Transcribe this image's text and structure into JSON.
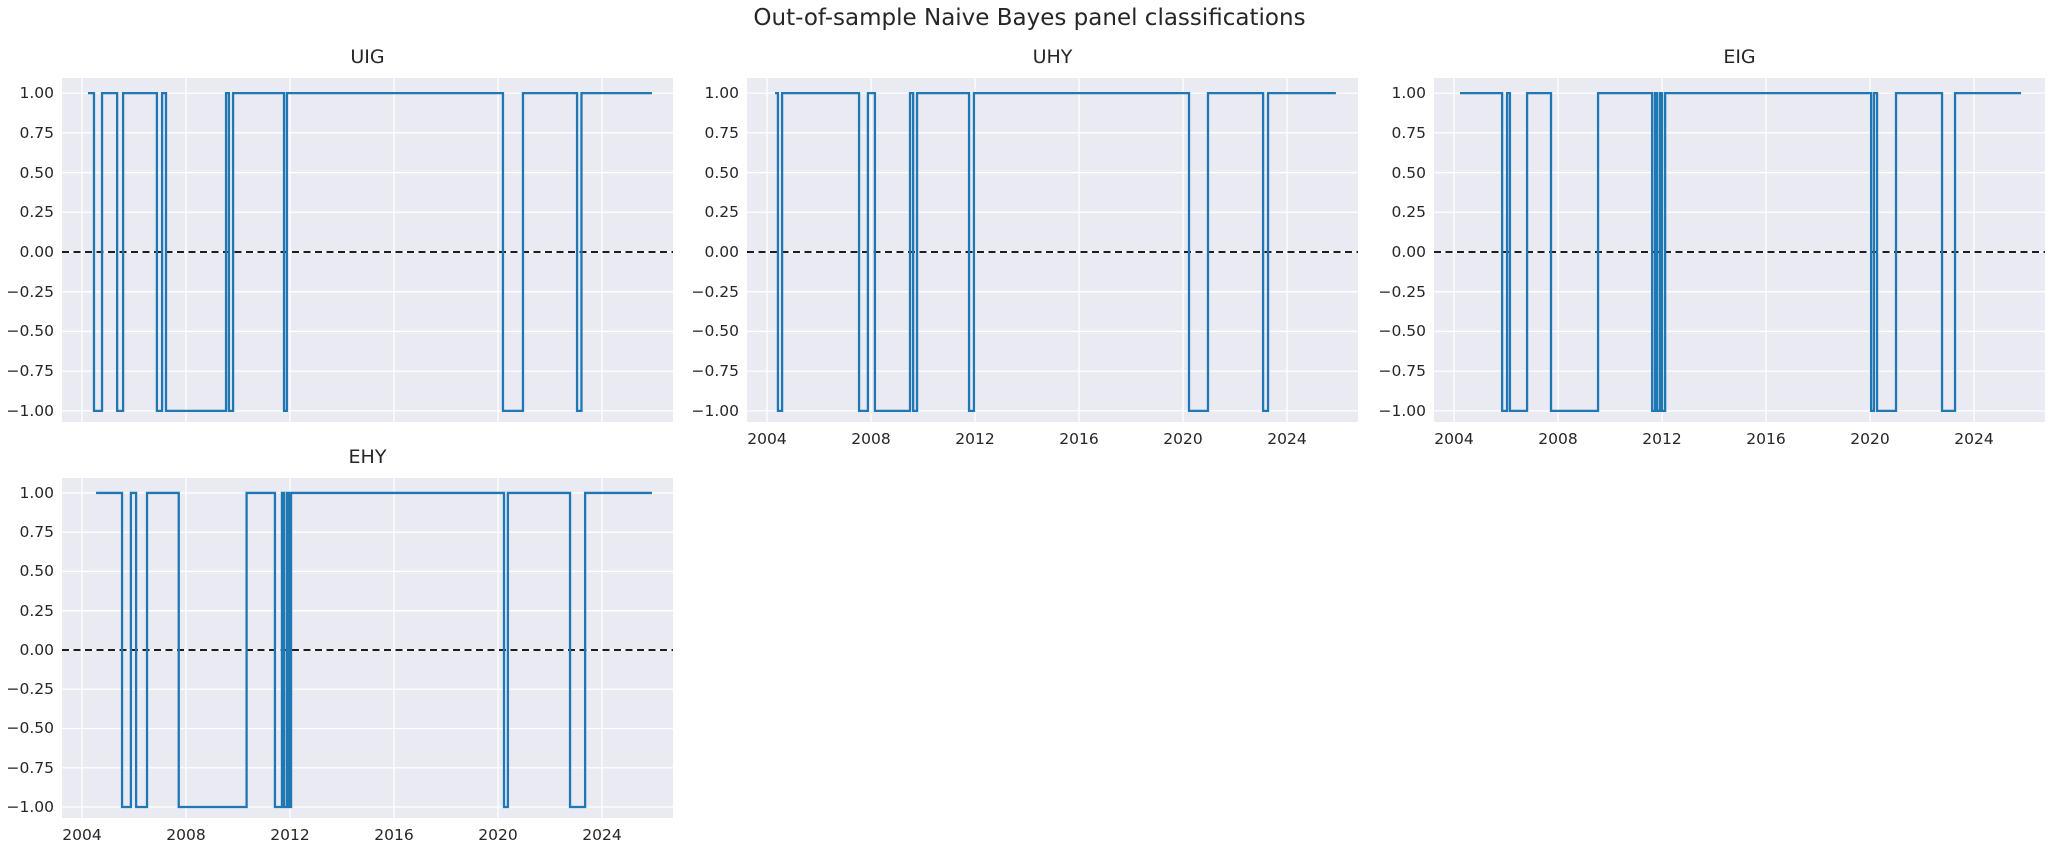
{
  "figure": {
    "suptitle": "Out-of-sample Naive Bayes panel classifications",
    "background_color": "#ffffff",
    "axes_background_color": "#eaeaf2",
    "grid_color": "#ffffff",
    "line_color": "#1f77b4",
    "zero_line_color": "#000000",
    "text_color": "#262626"
  },
  "chart_data": [
    {
      "type": "line",
      "title": "UIG",
      "xlabel": "",
      "ylabel": "",
      "x_domain": [
        2003.23,
        2026.73
      ],
      "y_domain": [
        -1.07,
        1.095
      ],
      "xticks": [
        2004,
        2008,
        2012,
        2016,
        2020,
        2024
      ],
      "yticks": [
        1.0,
        0.75,
        0.5,
        0.25,
        0.0,
        -0.25,
        -0.5,
        -0.75,
        -1.0
      ],
      "show_xtick_labels": false,
      "grid": true,
      "zero_line_dashed": true,
      "end_year": 2025.92,
      "steps": [
        [
          2004.23,
          1
        ],
        [
          2004.46,
          -1
        ],
        [
          2004.77,
          1
        ],
        [
          2005.35,
          -1
        ],
        [
          2005.58,
          1
        ],
        [
          2006.88,
          -1
        ],
        [
          2007.08,
          1
        ],
        [
          2007.23,
          -1
        ],
        [
          2009.54,
          1
        ],
        [
          2009.65,
          -1
        ],
        [
          2009.81,
          1
        ],
        [
          2011.77,
          -1
        ],
        [
          2011.88,
          1
        ],
        [
          2020.19,
          -1
        ],
        [
          2020.96,
          1
        ],
        [
          2023.04,
          -1
        ],
        [
          2023.21,
          1
        ]
      ]
    },
    {
      "type": "line",
      "title": "UHY",
      "xlabel": "",
      "ylabel": "",
      "x_domain": [
        2003.23,
        2026.73
      ],
      "y_domain": [
        -1.07,
        1.095
      ],
      "xticks": [
        2004,
        2008,
        2012,
        2016,
        2020,
        2024
      ],
      "yticks": [
        1.0,
        0.75,
        0.5,
        0.25,
        0.0,
        -0.25,
        -0.5,
        -0.75,
        -1.0
      ],
      "show_xtick_labels": true,
      "grid": true,
      "zero_line_dashed": true,
      "end_year": 2025.88,
      "steps": [
        [
          2004.31,
          1
        ],
        [
          2004.42,
          -1
        ],
        [
          2004.58,
          1
        ],
        [
          2007.54,
          -1
        ],
        [
          2007.88,
          1
        ],
        [
          2008.15,
          -1
        ],
        [
          2009.5,
          1
        ],
        [
          2009.62,
          -1
        ],
        [
          2009.77,
          1
        ],
        [
          2011.77,
          -1
        ],
        [
          2011.96,
          1
        ],
        [
          2020.23,
          -1
        ],
        [
          2020.96,
          1
        ],
        [
          2023.08,
          -1
        ],
        [
          2023.27,
          1
        ]
      ]
    },
    {
      "type": "line",
      "title": "EIG",
      "xlabel": "",
      "ylabel": "",
      "x_domain": [
        2003.23,
        2026.73
      ],
      "y_domain": [
        -1.07,
        1.095
      ],
      "xticks": [
        2004,
        2008,
        2012,
        2016,
        2020,
        2024
      ],
      "yticks": [
        1.0,
        0.75,
        0.5,
        0.25,
        0.0,
        -0.25,
        -0.5,
        -0.75,
        -1.0
      ],
      "show_xtick_labels": true,
      "grid": true,
      "zero_line_dashed": true,
      "end_year": 2025.81,
      "steps": [
        [
          2004.23,
          1
        ],
        [
          2005.85,
          -1
        ],
        [
          2006.04,
          1
        ],
        [
          2006.15,
          -1
        ],
        [
          2006.81,
          1
        ],
        [
          2007.73,
          -1
        ],
        [
          2009.54,
          1
        ],
        [
          2011.62,
          -1
        ],
        [
          2011.73,
          1
        ],
        [
          2011.81,
          -1
        ],
        [
          2011.92,
          1
        ],
        [
          2012.0,
          -1
        ],
        [
          2012.12,
          1
        ],
        [
          2020.04,
          -1
        ],
        [
          2020.15,
          1
        ],
        [
          2020.27,
          -1
        ],
        [
          2021.0,
          1
        ],
        [
          2022.77,
          -1
        ],
        [
          2023.27,
          1
        ]
      ]
    },
    {
      "type": "line",
      "title": "EHY",
      "xlabel": "",
      "ylabel": "",
      "x_domain": [
        2003.23,
        2026.73
      ],
      "y_domain": [
        -1.07,
        1.095
      ],
      "xticks": [
        2004,
        2008,
        2012,
        2016,
        2020,
        2024
      ],
      "yticks": [
        1.0,
        0.75,
        0.5,
        0.25,
        0.0,
        -0.25,
        -0.5,
        -0.75,
        -1.0
      ],
      "show_xtick_labels": true,
      "grid": true,
      "zero_line_dashed": true,
      "end_year": 2025.92,
      "steps": [
        [
          2004.54,
          1
        ],
        [
          2005.54,
          -1
        ],
        [
          2005.88,
          1
        ],
        [
          2006.08,
          -1
        ],
        [
          2006.5,
          1
        ],
        [
          2007.72,
          -1
        ],
        [
          2010.33,
          1
        ],
        [
          2011.42,
          -1
        ],
        [
          2011.69,
          1
        ],
        [
          2011.77,
          -1
        ],
        [
          2011.88,
          1
        ],
        [
          2011.96,
          -1
        ],
        [
          2012.04,
          1
        ],
        [
          2020.23,
          -1
        ],
        [
          2020.38,
          1
        ],
        [
          2022.77,
          -1
        ],
        [
          2023.35,
          1
        ]
      ]
    }
  ]
}
